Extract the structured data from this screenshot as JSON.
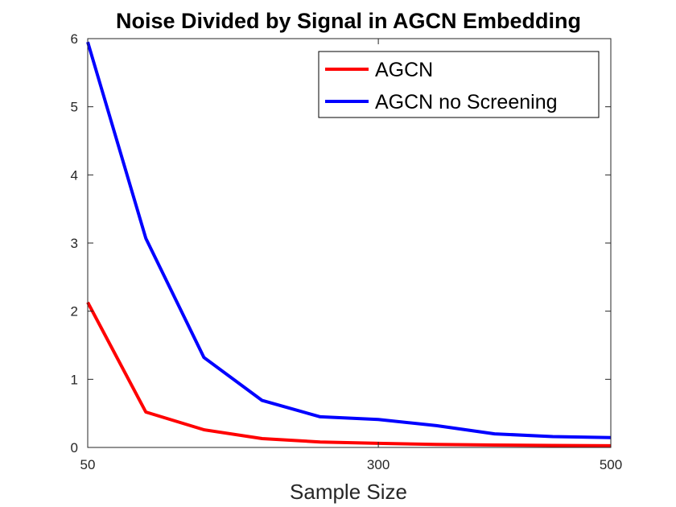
{
  "chart_data": {
    "type": "line",
    "title": "Noise Divided by Signal in AGCN Embedding",
    "xlabel": "Sample Size",
    "ylabel": "",
    "x": [
      50,
      100,
      150,
      200,
      250,
      300,
      350,
      400,
      450,
      500
    ],
    "xlim": [
      50,
      500
    ],
    "ylim": [
      0,
      6
    ],
    "xticks": [
      50,
      300,
      500
    ],
    "xtick_labels": [
      "50",
      "300",
      "500"
    ],
    "yticks": [
      0,
      1,
      2,
      3,
      4,
      5,
      6
    ],
    "ytick_labels": [
      "0",
      "1",
      "2",
      "3",
      "4",
      "5",
      "6"
    ],
    "grid": false,
    "legend_position": "top-right",
    "series": [
      {
        "name": "AGCN",
        "color": "#ff0000",
        "values": [
          2.13,
          0.52,
          0.26,
          0.13,
          0.08,
          0.06,
          0.045,
          0.035,
          0.03,
          0.025
        ]
      },
      {
        "name": "AGCN no Screening",
        "color": "#0000ff",
        "values": [
          5.95,
          3.07,
          1.32,
          0.69,
          0.45,
          0.41,
          0.32,
          0.2,
          0.16,
          0.145
        ]
      }
    ]
  }
}
